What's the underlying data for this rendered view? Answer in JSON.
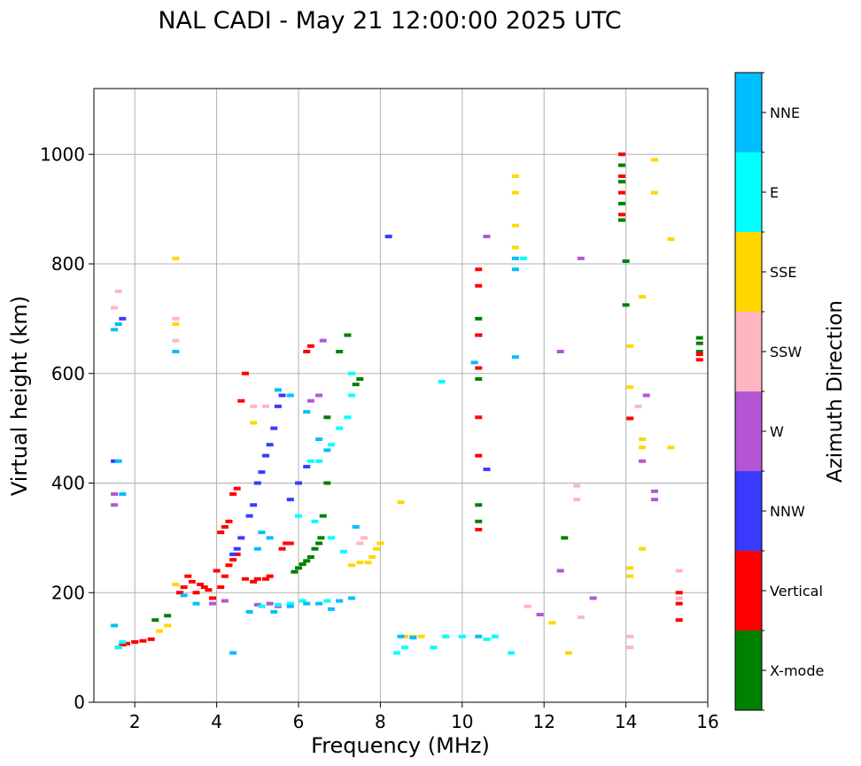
{
  "chart_data": {
    "type": "scatter",
    "title": "NAL CADI - May 21 12:00:00 2025 UTC",
    "xlabel": "Frequency (MHz)",
    "ylabel": "Virtual height (km)",
    "xlim": [
      1,
      16
    ],
    "ylim": [
      0,
      1120
    ],
    "xticks": [
      2,
      4,
      6,
      8,
      10,
      12,
      14,
      16
    ],
    "yticks": [
      0,
      200,
      400,
      600,
      800,
      1000
    ],
    "grid": true,
    "colorbar": {
      "label": "Azimuth Direction",
      "categories": [
        {
          "name": "X-mode",
          "color": "#008000"
        },
        {
          "name": "Vertical",
          "color": "#ff0000"
        },
        {
          "name": "NNW",
          "color": "#3a3aff"
        },
        {
          "name": "W",
          "color": "#b455d6"
        },
        {
          "name": "SSW",
          "color": "#ffb6c1"
        },
        {
          "name": "SSE",
          "color": "#ffd700"
        },
        {
          "name": "E",
          "color": "#00ffff"
        },
        {
          "name": "NNE",
          "color": "#00bfff"
        }
      ]
    },
    "series": [
      {
        "name": "X-mode",
        "points": [
          [
            2.5,
            150
          ],
          [
            2.8,
            158
          ],
          [
            5.9,
            238
          ],
          [
            6.0,
            245
          ],
          [
            6.1,
            252
          ],
          [
            6.2,
            258
          ],
          [
            6.3,
            265
          ],
          [
            6.4,
            280
          ],
          [
            6.5,
            290
          ],
          [
            6.55,
            300
          ],
          [
            6.6,
            340
          ],
          [
            6.7,
            400
          ],
          [
            6.7,
            520
          ],
          [
            7.0,
            640
          ],
          [
            7.2,
            670
          ],
          [
            7.4,
            580
          ],
          [
            7.5,
            590
          ],
          [
            10.4,
            330
          ],
          [
            10.4,
            360
          ],
          [
            10.4,
            590
          ],
          [
            10.4,
            670
          ],
          [
            10.4,
            700
          ],
          [
            12.5,
            300
          ],
          [
            13.9,
            880
          ],
          [
            13.9,
            910
          ],
          [
            13.9,
            950
          ],
          [
            13.9,
            980
          ],
          [
            14.0,
            725
          ],
          [
            14.0,
            805
          ],
          [
            15.8,
            640
          ],
          [
            15.8,
            655
          ],
          [
            15.8,
            665
          ]
        ]
      },
      {
        "name": "Vertical",
        "points": [
          [
            1.6,
            100
          ],
          [
            1.7,
            105
          ],
          [
            1.8,
            107
          ],
          [
            2.0,
            110
          ],
          [
            2.2,
            112
          ],
          [
            2.4,
            115
          ],
          [
            3.1,
            200
          ],
          [
            3.2,
            210
          ],
          [
            3.3,
            230
          ],
          [
            3.4,
            220
          ],
          [
            3.5,
            200
          ],
          [
            3.6,
            215
          ],
          [
            3.7,
            210
          ],
          [
            3.8,
            205
          ],
          [
            3.9,
            190
          ],
          [
            4.0,
            240
          ],
          [
            4.1,
            210
          ],
          [
            4.2,
            230
          ],
          [
            4.3,
            250
          ],
          [
            4.4,
            260
          ],
          [
            4.5,
            270
          ],
          [
            4.7,
            225
          ],
          [
            4.9,
            220
          ],
          [
            5.0,
            225
          ],
          [
            5.2,
            225
          ],
          [
            5.3,
            230
          ],
          [
            4.1,
            310
          ],
          [
            4.2,
            320
          ],
          [
            4.3,
            330
          ],
          [
            4.4,
            380
          ],
          [
            4.5,
            390
          ],
          [
            4.6,
            550
          ],
          [
            4.7,
            600
          ],
          [
            5.8,
            290
          ],
          [
            5.6,
            280
          ],
          [
            5.7,
            290
          ],
          [
            6.2,
            640
          ],
          [
            6.3,
            650
          ],
          [
            10.4,
            315
          ],
          [
            10.4,
            450
          ],
          [
            10.4,
            520
          ],
          [
            10.4,
            610
          ],
          [
            10.4,
            670
          ],
          [
            10.4,
            760
          ],
          [
            10.4,
            790
          ],
          [
            13.9,
            890
          ],
          [
            13.9,
            930
          ],
          [
            13.9,
            960
          ],
          [
            13.9,
            1000
          ],
          [
            14.1,
            518
          ],
          [
            15.3,
            150
          ],
          [
            15.3,
            180
          ],
          [
            15.3,
            200
          ],
          [
            15.8,
            625
          ],
          [
            15.8,
            635
          ]
        ]
      },
      {
        "name": "NNW",
        "points": [
          [
            1.5,
            440
          ],
          [
            1.7,
            700
          ],
          [
            4.4,
            270
          ],
          [
            4.5,
            280
          ],
          [
            4.6,
            300
          ],
          [
            4.8,
            340
          ],
          [
            4.9,
            360
          ],
          [
            5.0,
            400
          ],
          [
            5.1,
            420
          ],
          [
            5.2,
            450
          ],
          [
            5.3,
            470
          ],
          [
            5.4,
            500
          ],
          [
            5.5,
            540
          ],
          [
            5.6,
            560
          ],
          [
            5.8,
            370
          ],
          [
            6.0,
            400
          ],
          [
            6.2,
            430
          ],
          [
            8.2,
            850
          ],
          [
            10.6,
            425
          ]
        ]
      },
      {
        "name": "W",
        "points": [
          [
            1.5,
            360
          ],
          [
            1.5,
            380
          ],
          [
            3.9,
            180
          ],
          [
            4.2,
            185
          ],
          [
            5.0,
            178
          ],
          [
            5.3,
            180
          ],
          [
            5.5,
            175
          ],
          [
            6.3,
            550
          ],
          [
            6.5,
            560
          ],
          [
            6.6,
            660
          ],
          [
            10.6,
            850
          ],
          [
            12.4,
            640
          ],
          [
            12.4,
            240
          ],
          [
            12.9,
            810
          ],
          [
            13.2,
            190
          ],
          [
            14.4,
            440
          ],
          [
            14.5,
            560
          ],
          [
            14.7,
            385
          ],
          [
            14.7,
            370
          ],
          [
            11.9,
            160
          ]
        ]
      },
      {
        "name": "SSW",
        "points": [
          [
            1.5,
            720
          ],
          [
            1.6,
            750
          ],
          [
            3.0,
            660
          ],
          [
            3.0,
            700
          ],
          [
            4.9,
            540
          ],
          [
            5.2,
            540
          ],
          [
            7.5,
            290
          ],
          [
            7.6,
            300
          ],
          [
            12.8,
            370
          ],
          [
            12.8,
            395
          ],
          [
            12.9,
            155
          ],
          [
            14.1,
            100
          ],
          [
            14.1,
            120
          ],
          [
            14.3,
            540
          ],
          [
            15.3,
            240
          ],
          [
            15.3,
            190
          ],
          [
            11.6,
            175
          ]
        ]
      },
      {
        "name": "SSE",
        "points": [
          [
            2.6,
            130
          ],
          [
            2.8,
            140
          ],
          [
            3.0,
            215
          ],
          [
            3.0,
            690
          ],
          [
            3.0,
            810
          ],
          [
            4.9,
            510
          ],
          [
            7.3,
            250
          ],
          [
            7.5,
            255
          ],
          [
            7.7,
            255
          ],
          [
            7.8,
            265
          ],
          [
            7.9,
            280
          ],
          [
            8.0,
            290
          ],
          [
            8.5,
            365
          ],
          [
            8.6,
            120
          ],
          [
            8.8,
            120
          ],
          [
            9.0,
            120
          ],
          [
            11.3,
            870
          ],
          [
            11.3,
            930
          ],
          [
            11.3,
            960
          ],
          [
            11.3,
            830
          ],
          [
            12.2,
            145
          ],
          [
            12.6,
            90
          ],
          [
            14.1,
            230
          ],
          [
            14.1,
            245
          ],
          [
            14.1,
            575
          ],
          [
            14.1,
            650
          ],
          [
            14.4,
            480
          ],
          [
            14.4,
            465
          ],
          [
            14.4,
            280
          ],
          [
            14.4,
            740
          ],
          [
            14.7,
            990
          ],
          [
            14.7,
            930
          ],
          [
            15.1,
            845
          ],
          [
            15.1,
            465
          ]
        ]
      },
      {
        "name": "E",
        "points": [
          [
            1.6,
            100
          ],
          [
            1.7,
            110
          ],
          [
            5.1,
            175
          ],
          [
            5.5,
            178
          ],
          [
            5.8,
            180
          ],
          [
            6.1,
            185
          ],
          [
            6.7,
            185
          ],
          [
            6.3,
            440
          ],
          [
            6.5,
            440
          ],
          [
            6.8,
            470
          ],
          [
            7.0,
            500
          ],
          [
            7.2,
            520
          ],
          [
            7.3,
            560
          ],
          [
            7.3,
            600
          ],
          [
            6.0,
            340
          ],
          [
            6.4,
            330
          ],
          [
            6.8,
            300
          ],
          [
            7.1,
            275
          ],
          [
            8.4,
            90
          ],
          [
            8.6,
            100
          ],
          [
            9.3,
            100
          ],
          [
            9.6,
            120
          ],
          [
            10.0,
            120
          ],
          [
            10.6,
            115
          ],
          [
            10.8,
            120
          ],
          [
            11.2,
            90
          ],
          [
            9.5,
            585
          ],
          [
            11.5,
            810
          ]
        ]
      },
      {
        "name": "NNE",
        "points": [
          [
            1.5,
            140
          ],
          [
            1.5,
            680
          ],
          [
            1.6,
            690
          ],
          [
            1.6,
            440
          ],
          [
            1.7,
            380
          ],
          [
            3.0,
            640
          ],
          [
            3.2,
            195
          ],
          [
            3.5,
            180
          ],
          [
            4.4,
            90
          ],
          [
            4.8,
            165
          ],
          [
            5.4,
            165
          ],
          [
            5.8,
            175
          ],
          [
            6.2,
            180
          ],
          [
            6.5,
            180
          ],
          [
            6.8,
            170
          ],
          [
            7.0,
            185
          ],
          [
            7.3,
            190
          ],
          [
            6.2,
            530
          ],
          [
            6.5,
            480
          ],
          [
            6.7,
            460
          ],
          [
            5.5,
            570
          ],
          [
            5.8,
            560
          ],
          [
            7.4,
            320
          ],
          [
            11.3,
            790
          ],
          [
            11.3,
            810
          ],
          [
            11.3,
            630
          ],
          [
            10.3,
            620
          ],
          [
            10.4,
            120
          ],
          [
            8.5,
            120
          ],
          [
            8.8,
            118
          ],
          [
            5.3,
            300
          ],
          [
            5.0,
            280
          ],
          [
            5.1,
            310
          ]
        ]
      }
    ]
  }
}
